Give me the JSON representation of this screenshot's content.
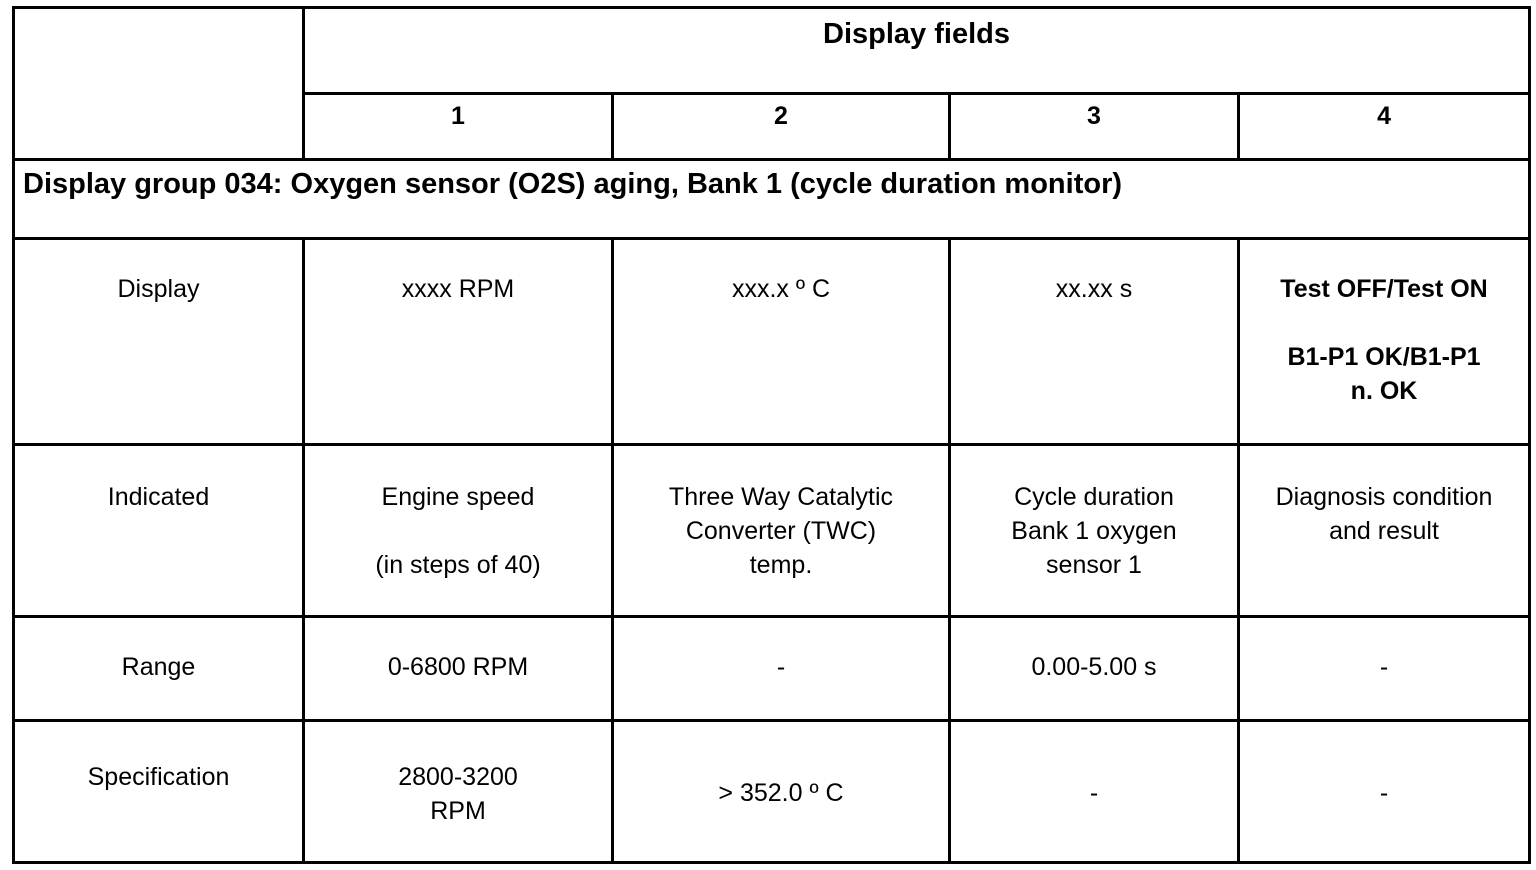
{
  "header": {
    "title": "Display fields",
    "field_numbers": [
      "1",
      "2",
      "3",
      "4"
    ]
  },
  "group_heading": "Display group 034: Oxygen sensor (O2S) aging, Bank 1 (cycle duration monitor)",
  "rows": {
    "display": {
      "label": "Display",
      "f1": "xxxx RPM",
      "f2": "xxx.x º C",
      "f3": "xx.xx s",
      "f4_line1": "Test OFF/Test ON",
      "f4_line2": "B1-P1 OK/B1-P1",
      "f4_line3": "n. OK"
    },
    "indicated": {
      "label": "Indicated",
      "f1_line1": "Engine speed",
      "f1_line2": "(in steps of 40)",
      "f2_line1": "Three Way Catalytic",
      "f2_line2": "Converter (TWC)",
      "f2_line3": "temp.",
      "f3_line1": "Cycle duration",
      "f3_line2": "Bank 1 oxygen",
      "f3_line3": "sensor 1",
      "f4_line1": "Diagnosis condition",
      "f4_line2": "and result"
    },
    "range": {
      "label": "Range",
      "f1": "0-6800 RPM",
      "f2": "-",
      "f3": "0.00-5.00 s",
      "f4": "-"
    },
    "specification": {
      "label": "Specification",
      "f1_line1": "2800-3200",
      "f1_line2": "RPM",
      "f2": "> 352.0 º C",
      "f3": "-",
      "f4": "-"
    }
  }
}
